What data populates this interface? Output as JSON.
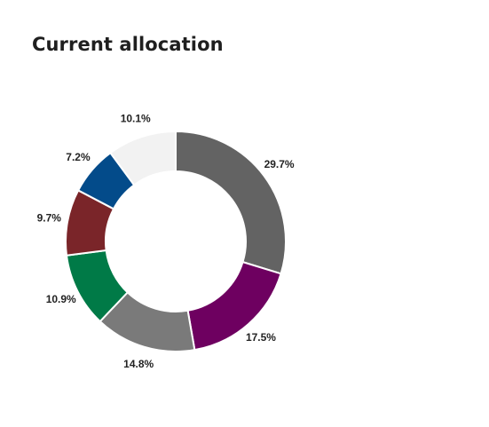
{
  "card": {
    "title": "Current allocation"
  },
  "chart_data": {
    "type": "pie",
    "variant": "donut",
    "legend": "none",
    "slices": [
      {
        "label": "29.7%",
        "value": 29.7,
        "color": "#636363"
      },
      {
        "label": "17.5%",
        "value": 17.5,
        "color": "#6e0060"
      },
      {
        "label": "14.8%",
        "value": 14.8,
        "color": "#7a7a7a"
      },
      {
        "label": "10.9%",
        "value": 10.9,
        "color": "#007a47"
      },
      {
        "label": "9.7%",
        "value": 9.7,
        "color": "#7a2529"
      },
      {
        "label": "7.2%",
        "value": 7.2,
        "color": "#034b8a"
      },
      {
        "label": "10.1%",
        "value": 10.1,
        "color": "#f2f2f2"
      }
    ]
  }
}
